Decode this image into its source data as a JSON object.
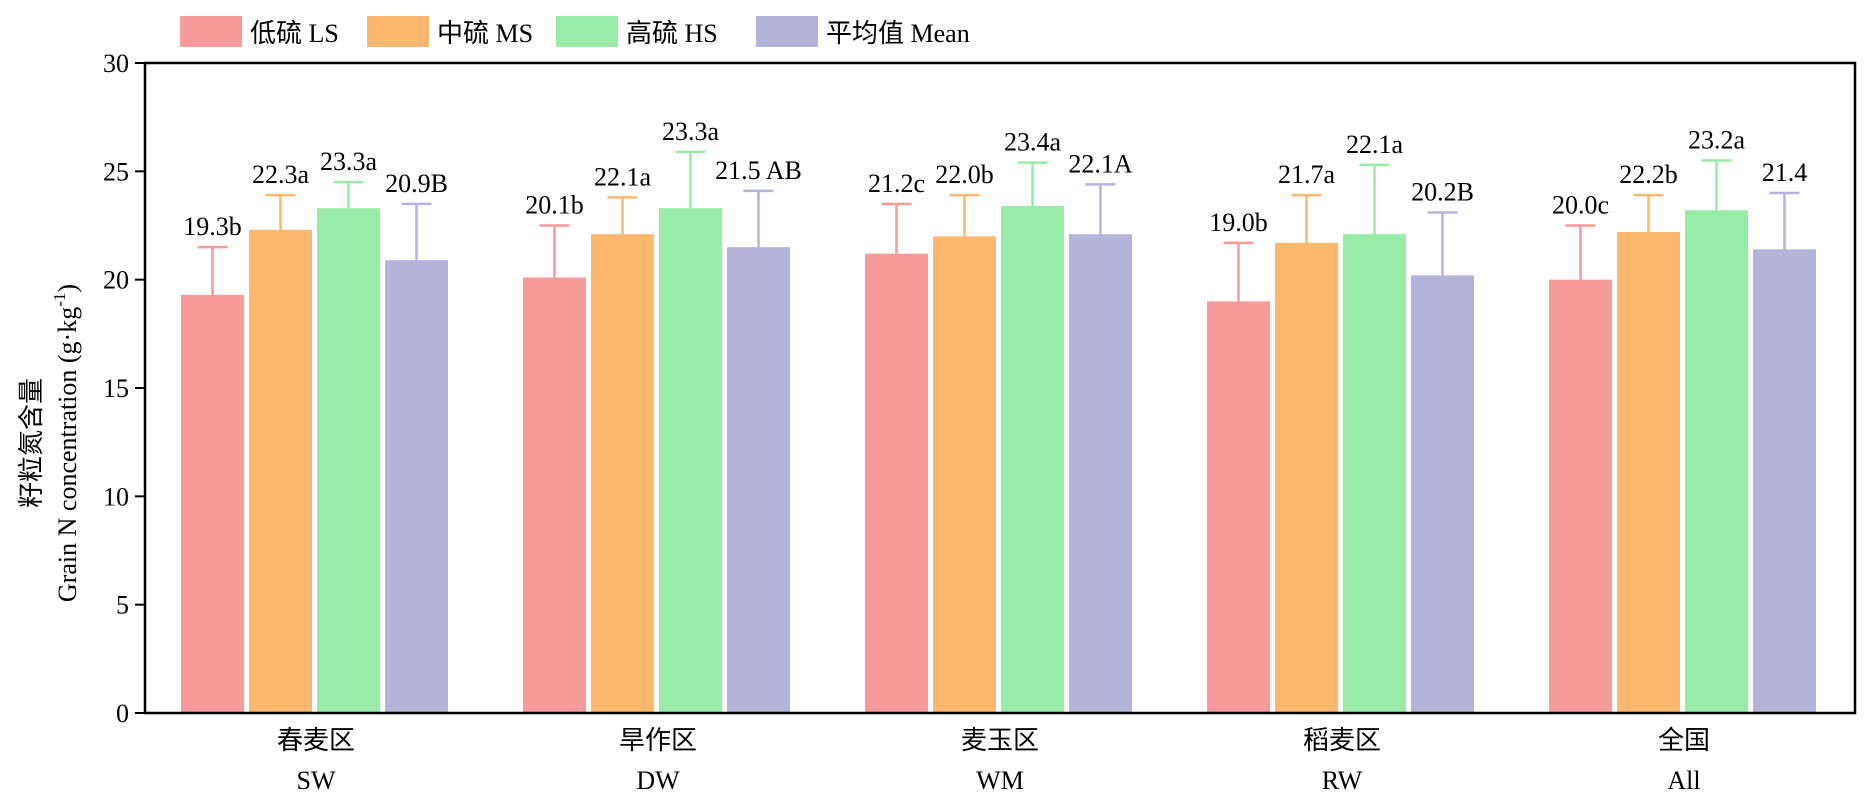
{
  "chart_data": {
    "type": "bar",
    "title": "",
    "ylabel_cn": "籽粒氮含量",
    "ylabel_en": "Grain N concentration (g·kg",
    "ylabel_sup": "-1",
    "ylabel_close": ")",
    "ylim": [
      0,
      30
    ],
    "yticks": [
      0,
      5,
      10,
      15,
      20,
      25,
      30
    ],
    "grid": false,
    "legend_position": "top-left",
    "categories": [
      {
        "cn": "春麦区",
        "en": "SW"
      },
      {
        "cn": "旱作区",
        "en": "DW"
      },
      {
        "cn": "麦玉区",
        "en": "WM"
      },
      {
        "cn": "稻麦区",
        "en": "RW"
      },
      {
        "cn": "全国",
        "en": "All"
      }
    ],
    "series": [
      {
        "name": "低硫 LS",
        "color": "#f8999a",
        "values": [
          19.3,
          20.1,
          21.2,
          19.0,
          20.0
        ],
        "errors": [
          2.2,
          2.4,
          2.3,
          2.7,
          2.5
        ],
        "labels": [
          "19.3b",
          "20.1b",
          "21.2c",
          "19.0b",
          "20.0c"
        ]
      },
      {
        "name": "中硫 MS",
        "color": "#fdb86f",
        "values": [
          22.3,
          22.1,
          22.0,
          21.7,
          22.2
        ],
        "errors": [
          1.6,
          1.7,
          1.9,
          2.2,
          1.7
        ],
        "labels": [
          "22.3a",
          "22.1a",
          "22.0b",
          "21.7a",
          "22.2b"
        ]
      },
      {
        "name": "高硫 HS",
        "color": "#99eca8",
        "values": [
          23.3,
          23.3,
          23.4,
          22.1,
          23.2
        ],
        "errors": [
          1.2,
          2.6,
          2.0,
          3.2,
          2.3
        ],
        "labels": [
          "23.3a",
          "23.3a",
          "23.4a",
          "22.1a",
          "23.2a"
        ]
      },
      {
        "name": "平均值 Mean",
        "color": "#b4b4da",
        "values": [
          20.9,
          21.5,
          22.1,
          20.2,
          21.4
        ],
        "errors": [
          2.6,
          2.6,
          2.3,
          2.9,
          2.6
        ],
        "labels": [
          "20.9B",
          "21.5 AB",
          "22.1A",
          "20.2B",
          "21.4"
        ]
      }
    ]
  }
}
